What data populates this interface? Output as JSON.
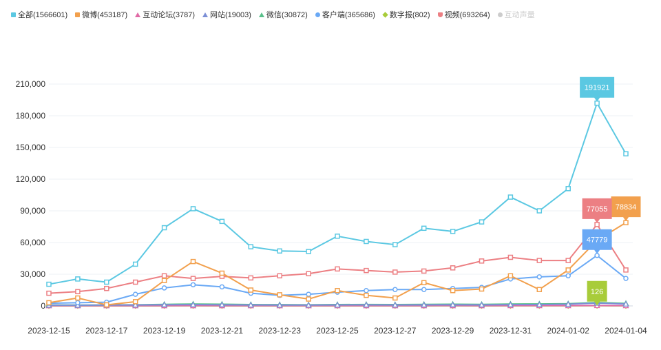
{
  "chart_data": {
    "type": "line",
    "legend": {
      "placement": "top-left",
      "entries": [
        {
          "label": "全部(1566601)",
          "color": "#5bc8e2",
          "marker": "rect",
          "visible": true
        },
        {
          "label": "微博(453187)",
          "color": "#f2a04d",
          "marker": "rect",
          "visible": true
        },
        {
          "label": "互动论坛(3787)",
          "color": "#e06aa6",
          "marker": "triangle",
          "visible": true
        },
        {
          "label": "网站(19003)",
          "color": "#7c8fd6",
          "marker": "triangle",
          "visible": true
        },
        {
          "label": "微信(30872)",
          "color": "#58c08a",
          "marker": "triangle",
          "visible": true
        },
        {
          "label": "客户端(365686)",
          "color": "#6aa9f5",
          "marker": "circle",
          "visible": true
        },
        {
          "label": "数字报(802)",
          "color": "#a8cc3a",
          "marker": "diamond",
          "visible": true
        },
        {
          "label": "视频(693264)",
          "color": "#ec7f83",
          "marker": "shield",
          "visible": true
        },
        {
          "label": "互动声量",
          "color": "#f3e6a8",
          "marker": "circle",
          "visible": false
        }
      ]
    },
    "x": [
      "2023-12-15",
      "2023-12-16",
      "2023-12-17",
      "2023-12-18",
      "2023-12-19",
      "2023-12-20",
      "2023-12-21",
      "2023-12-22",
      "2023-12-23",
      "2023-12-24",
      "2023-12-25",
      "2023-12-26",
      "2023-12-27",
      "2023-12-28",
      "2023-12-29",
      "2023-12-30",
      "2023-12-31",
      "2024-01-01",
      "2024-01-02",
      "2024-01-03",
      "2024-01-04"
    ],
    "x_tick_labels": [
      "2023-12-15",
      "2023-12-17",
      "2023-12-19",
      "2023-12-21",
      "2023-12-23",
      "2023-12-25",
      "2023-12-27",
      "2023-12-29",
      "2023-12-31",
      "2024-01-02",
      "2024-01-04"
    ],
    "y_ticks": [
      "0",
      "30,000",
      "60,000",
      "90,000",
      "120,000",
      "150,000",
      "180,000",
      "210,000"
    ],
    "ylim": [
      0,
      210000
    ],
    "grid": true,
    "series": [
      {
        "name": "全部(1566601)",
        "color": "#5bc8e2",
        "marker": "rect",
        "values": [
          20500,
          25500,
          22500,
          39500,
          74000,
          92000,
          80000,
          56000,
          52000,
          51500,
          66000,
          61000,
          58000,
          73500,
          70500,
          79500,
          103000,
          90000,
          111000,
          191921,
          144000
        ]
      },
      {
        "name": "微博(453187)",
        "color": "#f2a04d",
        "marker": "rect",
        "values": [
          3000,
          7500,
          1000,
          4000,
          24000,
          42000,
          31000,
          15000,
          10500,
          6500,
          14500,
          10000,
          7500,
          22000,
          14500,
          16000,
          28500,
          15500,
          34000,
          62000,
          78834
        ]
      },
      {
        "name": "视频(693264)",
        "color": "#ec7f83",
        "marker": "shield",
        "values": [
          12000,
          13500,
          16500,
          22500,
          28500,
          26000,
          28000,
          26500,
          28500,
          30500,
          35000,
          33500,
          32000,
          33000,
          36000,
          42500,
          46000,
          43000,
          43000,
          77055,
          34000
        ]
      },
      {
        "name": "客户端(365686)",
        "color": "#6aa9f5",
        "marker": "circle",
        "values": [
          2500,
          3000,
          3500,
          11000,
          17000,
          20000,
          18000,
          12000,
          10000,
          11000,
          13000,
          14500,
          15500,
          15500,
          16500,
          17500,
          25500,
          27500,
          28500,
          47779,
          26000
        ]
      },
      {
        "name": "网站(19003)",
        "color": "#7c8fd6",
        "marker": "triangle",
        "values": [
          700,
          600,
          800,
          900,
          1100,
          1200,
          1100,
          900,
          800,
          800,
          900,
          1000,
          900,
          1000,
          1100,
          1000,
          1200,
          1300,
          1600,
          2600,
          1800
        ]
      },
      {
        "name": "微信(30872)",
        "color": "#58c08a",
        "marker": "triangle",
        "values": [
          900,
          800,
          900,
          1100,
          1500,
          1800,
          1600,
          1300,
          1200,
          1100,
          1300,
          1400,
          1300,
          1500,
          1600,
          1500,
          1800,
          1900,
          2100,
          3200,
          2400
        ]
      },
      {
        "name": "互动论坛(3787)",
        "color": "#e06aa6",
        "marker": "triangle",
        "values": [
          150,
          140,
          160,
          170,
          190,
          210,
          200,
          180,
          170,
          160,
          180,
          190,
          180,
          200,
          210,
          200,
          230,
          240,
          260,
          320,
          250
        ]
      },
      {
        "name": "数字报(802)",
        "color": "#a8cc3a",
        "marker": "diamond",
        "values": [
          30,
          25,
          30,
          35,
          40,
          45,
          40,
          35,
          35,
          30,
          35,
          40,
          35,
          40,
          45,
          40,
          45,
          50,
          60,
          126,
          50
        ]
      }
    ],
    "point_labels": [
      {
        "series": "全部(1566601)",
        "x": "2024-01-03",
        "text": "191921"
      },
      {
        "series": "微博(453187)",
        "x": "2024-01-04",
        "text": "78834"
      },
      {
        "series": "视频(693264)",
        "x": "2024-01-03",
        "text": "77055"
      },
      {
        "series": "客户端(365686)",
        "x": "2024-01-03",
        "text": "47779"
      },
      {
        "series": "数字报(802)",
        "x": "2024-01-03",
        "text": "126"
      }
    ]
  }
}
